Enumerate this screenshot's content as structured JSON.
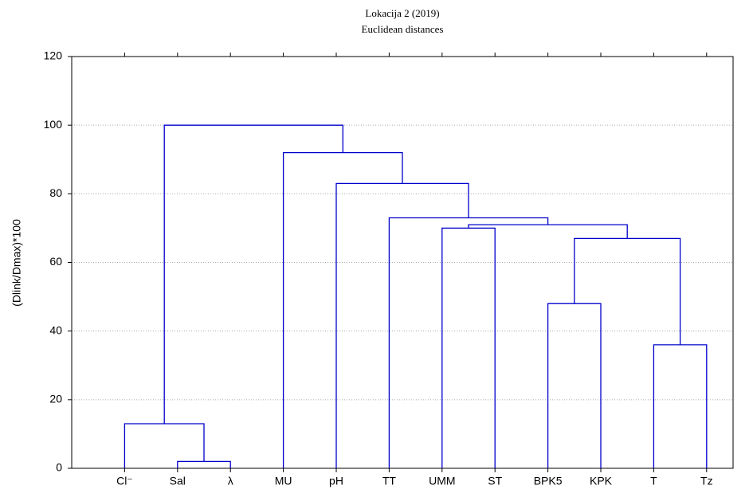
{
  "chart_data": {
    "type": "dendrogram",
    "title": "Lokacija 2   (2019)",
    "subtitle": "Euclidean distances",
    "y_label": "(Dlink/Dmax)*100",
    "categories": [
      "Cl⁻",
      "Sal",
      "λ",
      "MU",
      "pH",
      "TT",
      "UMM",
      "ST",
      "BPK5",
      "KPK",
      "T",
      "Tz"
    ],
    "merges": [
      {
        "left": 1,
        "right": 2,
        "height": 2
      },
      {
        "left": 0,
        "right": 12,
        "height": 13
      },
      {
        "left": 10,
        "right": 11,
        "height": 36
      },
      {
        "left": 8,
        "right": 9,
        "height": 48
      },
      {
        "left": 15,
        "right": 14,
        "height": 67
      },
      {
        "left": 6,
        "right": 7,
        "height": 70
      },
      {
        "left": 17,
        "right": 16,
        "height": 71
      },
      {
        "left": 5,
        "right": 18,
        "height": 73
      },
      {
        "left": 4,
        "right": 19,
        "height": 83
      },
      {
        "left": 3,
        "right": 20,
        "height": 92
      },
      {
        "left": 13,
        "right": 21,
        "height": 100
      }
    ],
    "color": "#0000cc",
    "ylim": [
      0,
      120
    ],
    "yticks": [
      0,
      20,
      40,
      60,
      80,
      100,
      120
    ],
    "grid": true
  }
}
